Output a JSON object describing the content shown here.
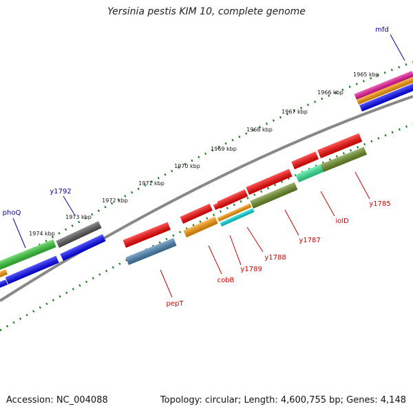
{
  "title": "Yersinia pestis KIM 10, complete genome",
  "footer": {
    "accession": "Accession: NC_004088",
    "summary": "Topology: circular; Length: 4,600,755 bp; Genes: 4,148"
  },
  "ticks": [
    "1965 kbp",
    "1966 kbp",
    "1967 kbp",
    "1968 kbp",
    "1969 kbp",
    "1970 kbp",
    "1971 kbp",
    "1972 kbp",
    "1973 kbp",
    "1974 kbp"
  ],
  "gene_labels": [
    {
      "name": "mfd",
      "color": "#0000aa"
    },
    {
      "name": "y1792",
      "color": "#0000aa"
    },
    {
      "name": "phoQ",
      "color": "#0000aa"
    },
    {
      "name": "y1785",
      "color": "#cc0000"
    },
    {
      "name": "iolD",
      "color": "#cc0000"
    },
    {
      "name": "y1787",
      "color": "#cc0000"
    },
    {
      "name": "y1788",
      "color": "#cc0000"
    },
    {
      "name": "y1789",
      "color": "#cc0000"
    },
    {
      "name": "cobB",
      "color": "#cc0000"
    },
    {
      "name": "pepT",
      "color": "#cc0000"
    }
  ],
  "colors": {
    "backbone": "#888888",
    "tick_dots": "#1a7a1a",
    "red": "#ff0000",
    "blue": "#0000ff",
    "green": "#33cc33",
    "olive": "#6b8e23",
    "orange": "#ff9900",
    "cyan": "#00dddd",
    "teal": "#33ee99",
    "steel": "#4682b4",
    "gray": "#555555",
    "magenta": "#ee1199"
  }
}
